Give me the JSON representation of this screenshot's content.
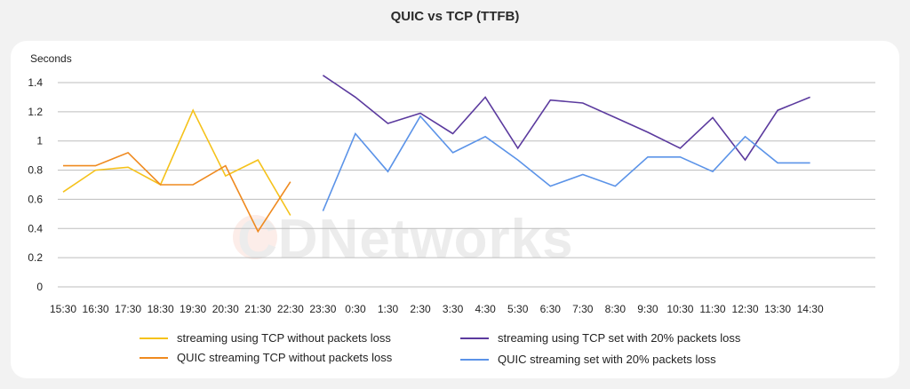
{
  "chart_data": {
    "type": "line",
    "title": "QUIC vs TCP (TTFB)",
    "ylabel": "Seconds",
    "xlabel": "",
    "ylim": [
      0,
      1.4
    ],
    "yticks": [
      "0",
      "0.2",
      "0.4",
      "0.6",
      "0.8",
      "1",
      "1.2",
      "1.4"
    ],
    "ytick_values": [
      0,
      0.2,
      0.4,
      0.6,
      0.8,
      1.0,
      1.2,
      1.4
    ],
    "categories": [
      "15:30",
      "16:30",
      "17:30",
      "18:30",
      "19:30",
      "20:30",
      "21:30",
      "22:30",
      "23:30",
      "0:30",
      "1:30",
      "2:30",
      "3:30",
      "4:30",
      "5:30",
      "6:30",
      "7:30",
      "8:30",
      "9:30",
      "10:30",
      "11:30",
      "12:30",
      "13:30",
      "14:30"
    ],
    "grid": true,
    "legend_position": "bottom",
    "series": [
      {
        "name": "streaming using TCP without packets loss",
        "color": "#f5c21b",
        "x": [
          0,
          1,
          2,
          3,
          4,
          5,
          6,
          7
        ],
        "values": [
          0.65,
          0.8,
          0.82,
          0.7,
          1.21,
          0.76,
          0.87,
          0.49
        ]
      },
      {
        "name": "QUIC streaming TCP without packets loss",
        "color": "#ef8a1f",
        "x": [
          0,
          1,
          2,
          3,
          4,
          5,
          6,
          7
        ],
        "values": [
          0.83,
          0.83,
          0.92,
          0.7,
          0.7,
          0.83,
          0.38,
          0.72
        ]
      },
      {
        "name": "streaming using TCP set with 20% packets loss",
        "color": "#5b3a9e",
        "x": [
          8,
          9,
          10,
          11,
          12,
          13,
          14,
          15,
          16,
          17,
          18,
          19,
          20,
          21,
          22,
          23
        ],
        "values": [
          1.45,
          1.3,
          1.12,
          1.19,
          1.05,
          1.3,
          0.95,
          1.28,
          1.26,
          1.16,
          1.06,
          0.95,
          1.16,
          0.87,
          1.21,
          1.3
        ]
      },
      {
        "name": "QUIC streaming set with 20% packets loss",
        "color": "#5b93e8",
        "x": [
          8,
          9,
          10,
          11,
          12,
          13,
          14,
          15,
          16,
          17,
          18,
          19,
          20,
          21,
          22,
          23
        ],
        "values": [
          0.52,
          1.05,
          0.79,
          1.17,
          0.92,
          1.03,
          0.87,
          0.69,
          0.77,
          0.69,
          0.89,
          0.89,
          0.79,
          1.03,
          0.85,
          0.85
        ]
      }
    ]
  },
  "watermark": "CDNetworks"
}
